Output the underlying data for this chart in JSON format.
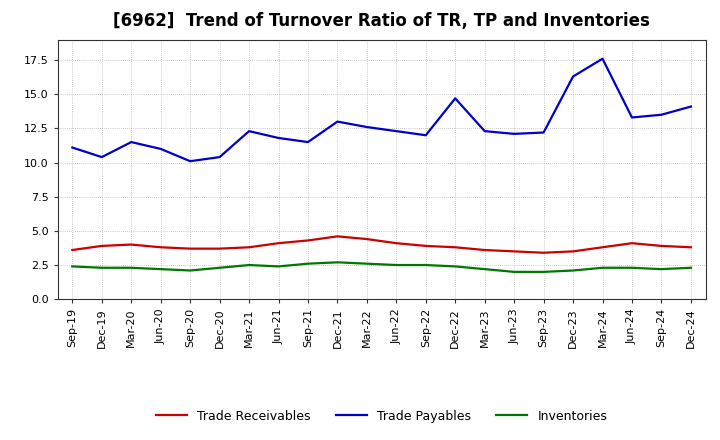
{
  "title": "[6962]  Trend of Turnover Ratio of TR, TP and Inventories",
  "x_labels": [
    "Sep-19",
    "Dec-19",
    "Mar-20",
    "Jun-20",
    "Sep-20",
    "Dec-20",
    "Mar-21",
    "Jun-21",
    "Sep-21",
    "Dec-21",
    "Mar-22",
    "Jun-22",
    "Sep-22",
    "Dec-22",
    "Mar-23",
    "Jun-23",
    "Sep-23",
    "Dec-23",
    "Mar-24",
    "Jun-24",
    "Sep-24",
    "Dec-24"
  ],
  "trade_receivables": [
    3.6,
    3.9,
    4.0,
    3.8,
    3.7,
    3.7,
    3.8,
    4.1,
    4.3,
    4.6,
    4.4,
    4.1,
    3.9,
    3.8,
    3.6,
    3.5,
    3.4,
    3.5,
    3.8,
    4.1,
    3.9,
    3.8
  ],
  "trade_payables": [
    11.1,
    10.4,
    11.5,
    11.0,
    10.1,
    10.4,
    12.3,
    11.8,
    11.5,
    13.0,
    12.6,
    12.3,
    12.0,
    14.7,
    12.3,
    12.1,
    12.2,
    16.3,
    17.6,
    13.3,
    13.5,
    14.1
  ],
  "inventories": [
    2.4,
    2.3,
    2.3,
    2.2,
    2.1,
    2.3,
    2.5,
    2.4,
    2.6,
    2.7,
    2.6,
    2.5,
    2.5,
    2.4,
    2.2,
    2.0,
    2.0,
    2.1,
    2.3,
    2.3,
    2.2,
    2.3
  ],
  "color_receivables": "#cc0000",
  "color_payables": "#0000cc",
  "color_inventories": "#007700",
  "ylim": [
    0.0,
    19.0
  ],
  "yticks": [
    0.0,
    2.5,
    5.0,
    7.5,
    10.0,
    12.5,
    15.0,
    17.5
  ],
  "background_color": "#ffffff",
  "grid_color": "#999999",
  "legend_receivables": "Trade Receivables",
  "legend_payables": "Trade Payables",
  "legend_inventories": "Inventories",
  "title_fontsize": 12,
  "tick_fontsize": 8,
  "legend_fontsize": 9,
  "linewidth": 1.6
}
